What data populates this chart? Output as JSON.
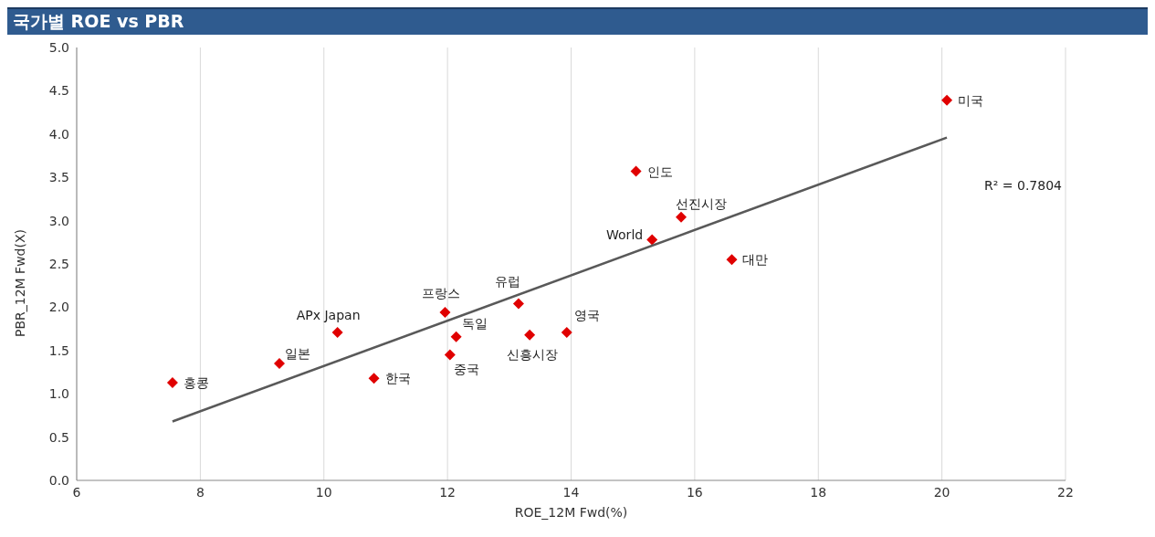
{
  "chart_data": {
    "type": "scatter",
    "title": "국가별 ROE vs PBR",
    "xlabel": "ROE_12M Fwd(%)",
    "ylabel": "PBR_12M Fwd(X)",
    "xlim": [
      6,
      22
    ],
    "xticks": [
      6,
      8,
      10,
      12,
      14,
      16,
      18,
      20,
      22
    ],
    "ylim": [
      0,
      5
    ],
    "yticks": [
      {
        "value": 0,
        "label": "0.0"
      },
      {
        "value": 0.5,
        "label": "0.5"
      },
      {
        "value": 1,
        "label": "1.0"
      },
      {
        "value": 1.5,
        "label": "1.5"
      },
      {
        "value": 2,
        "label": "2.0"
      },
      {
        "value": 2.5,
        "label": "2.5"
      },
      {
        "value": 3,
        "label": "3.0"
      },
      {
        "value": 3.5,
        "label": "3.5"
      },
      {
        "value": 4,
        "label": "4.0"
      },
      {
        "value": 4.5,
        "label": "4.5"
      },
      {
        "value": 5,
        "label": "5.0"
      }
    ],
    "grid": "x",
    "marker": "diamond",
    "annotations": [
      "R² = 0.7804"
    ],
    "series": [
      {
        "name": "홍콩",
        "color": "#e00000",
        "x": [
          7.55
        ],
        "values": [
          1.13
        ]
      },
      {
        "name": "일본",
        "color": "#e00000",
        "x": [
          9.28
        ],
        "values": [
          1.35
        ]
      },
      {
        "name": "APx Japan",
        "color": "#e00000",
        "x": [
          10.22
        ],
        "values": [
          1.71
        ]
      },
      {
        "name": "한국",
        "color": "#e00000",
        "x": [
          10.81
        ],
        "values": [
          1.18
        ]
      },
      {
        "name": "프랑스",
        "color": "#e00000",
        "x": [
          11.96
        ],
        "values": [
          1.94
        ]
      },
      {
        "name": "독일",
        "color": "#e00000",
        "x": [
          12.14
        ],
        "values": [
          1.66
        ]
      },
      {
        "name": "중국",
        "color": "#e00000",
        "x": [
          12.04
        ],
        "values": [
          1.45
        ]
      },
      {
        "name": "유럽",
        "color": "#e00000",
        "x": [
          13.15
        ],
        "values": [
          2.04
        ]
      },
      {
        "name": "신흥시장",
        "color": "#e00000",
        "x": [
          13.33
        ],
        "values": [
          1.68
        ]
      },
      {
        "name": "영국",
        "color": "#e00000",
        "x": [
          13.93
        ],
        "values": [
          1.71
        ]
      },
      {
        "name": "인도",
        "color": "#e00000",
        "x": [
          15.05
        ],
        "values": [
          3.57
        ]
      },
      {
        "name": "World",
        "color": "#e00000",
        "x": [
          15.31
        ],
        "values": [
          2.78
        ]
      },
      {
        "name": "선진시장",
        "color": "#e00000",
        "x": [
          15.78
        ],
        "values": [
          3.04
        ]
      },
      {
        "name": "대만",
        "color": "#e00000",
        "x": [
          16.6
        ],
        "values": [
          2.55
        ]
      },
      {
        "name": "미국",
        "color": "#e00000",
        "x": [
          20.08
        ],
        "values": [
          4.39
        ]
      },
      {
        "type": "line",
        "color": "#595959",
        "x": [
          7.55,
          20.08
        ],
        "values": [
          0.68,
          3.96
        ],
        "marker": "none"
      }
    ]
  }
}
